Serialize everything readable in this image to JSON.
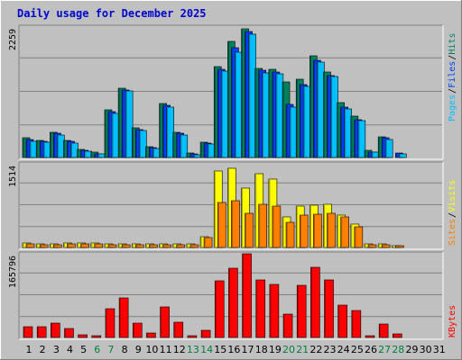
{
  "title": "Daily usage for December 2025",
  "colors": {
    "panel_bg": "#c0c0c0",
    "hits": "#00805c",
    "files": "#0040ff",
    "pages": "#00c0ff",
    "visits": "#ffff00",
    "sites": "#ff8000",
    "kbytes": "#ff0000",
    "weekend_label": "#008040",
    "weekday_label": "#000000"
  },
  "chart_data": [
    {
      "type": "bar",
      "panel": "hits-files-pages",
      "ytick_label": "2259",
      "ylim": [
        0,
        2259
      ],
      "legend": [
        {
          "text": "Pages",
          "color": "#00c0ff"
        },
        {
          "text": "/",
          "color": "#000000"
        },
        {
          "text": "Files",
          "color": "#0040ff"
        },
        {
          "text": "/",
          "color": "#000000"
        },
        {
          "text": "Hits",
          "color": "#00805c"
        }
      ],
      "categories": [
        1,
        2,
        3,
        4,
        5,
        6,
        7,
        8,
        9,
        10,
        11,
        12,
        13,
        14,
        15,
        16,
        17,
        18,
        19,
        20,
        21,
        22,
        23,
        24,
        25,
        26,
        27,
        28,
        29,
        30,
        31
      ],
      "series": [
        {
          "name": "Hits",
          "values": [
            340,
            300,
            450,
            300,
            140,
            90,
            830,
            1220,
            520,
            190,
            940,
            450,
            80,
            270,
            1600,
            2030,
            2260,
            1570,
            1550,
            1330,
            1380,
            1790,
            1500,
            960,
            720,
            120,
            370,
            0,
            0,
            0,
            0
          ]
        },
        {
          "name": "Files",
          "values": [
            310,
            280,
            420,
            280,
            120,
            70,
            800,
            1190,
            490,
            170,
            910,
            420,
            60,
            250,
            1550,
            1930,
            2210,
            1530,
            1500,
            930,
            1280,
            1710,
            1440,
            880,
            660,
            100,
            340,
            80,
            0,
            0,
            0
          ]
        },
        {
          "name": "Pages",
          "values": [
            285,
            265,
            400,
            260,
            110,
            60,
            780,
            1170,
            470,
            160,
            890,
            400,
            50,
            230,
            1510,
            1850,
            2170,
            1490,
            1470,
            880,
            1250,
            1680,
            1420,
            850,
            640,
            90,
            320,
            70,
            0,
            0,
            0
          ]
        }
      ]
    },
    {
      "type": "bar",
      "panel": "visits-sites",
      "ytick_label": "1514",
      "ylim": [
        0,
        1514
      ],
      "legend": [
        {
          "text": "Sites",
          "color": "#ff8000"
        },
        {
          "text": "/",
          "color": "#000000"
        },
        {
          "text": "Visits",
          "color": "#ffff00"
        }
      ],
      "categories": [
        1,
        2,
        3,
        4,
        5,
        6,
        7,
        8,
        9,
        10,
        11,
        12,
        13,
        14,
        15,
        16,
        17,
        18,
        19,
        20,
        21,
        22,
        23,
        24,
        25,
        26,
        27,
        28,
        29,
        30,
        31
      ],
      "series": [
        {
          "name": "Visits",
          "values": [
            80,
            70,
            65,
            75,
            90,
            85,
            65,
            60,
            60,
            65,
            60,
            60,
            60,
            200,
            1420,
            1460,
            1100,
            1360,
            1260,
            570,
            760,
            790,
            800,
            600,
            440,
            65,
            60,
            40,
            0,
            0,
            0
          ]
        },
        {
          "name": "Sites",
          "values": [
            60,
            55,
            55,
            60,
            70,
            65,
            55,
            50,
            50,
            55,
            50,
            50,
            50,
            185,
            840,
            860,
            640,
            800,
            760,
            460,
            600,
            620,
            630,
            560,
            380,
            55,
            50,
            30,
            0,
            0,
            0
          ]
        }
      ]
    },
    {
      "type": "bar",
      "panel": "kbytes",
      "ytick_label": "165796",
      "ylim": [
        0,
        165796
      ],
      "legend": [
        {
          "text": "KBytes",
          "color": "#ff0000"
        }
      ],
      "categories": [
        1,
        2,
        3,
        4,
        5,
        6,
        7,
        8,
        9,
        10,
        11,
        12,
        13,
        14,
        15,
        16,
        17,
        18,
        19,
        20,
        21,
        22,
        23,
        24,
        25,
        26,
        27,
        28,
        29,
        30,
        31
      ],
      "series": [
        {
          "name": "KBytes",
          "values": [
            22000,
            22000,
            30000,
            19000,
            6000,
            4000,
            58000,
            80000,
            29000,
            9000,
            62000,
            31000,
            3000,
            15000,
            115000,
            140000,
            170000,
            116000,
            107000,
            47000,
            106000,
            142000,
            117000,
            66000,
            54000,
            4000,
            28000,
            7000,
            0,
            0,
            0
          ]
        }
      ]
    }
  ],
  "x_axis": {
    "labels": [
      "1",
      "2",
      "3",
      "4",
      "5",
      "6",
      "7",
      "8",
      "9",
      "10",
      "11",
      "12",
      "13",
      "14",
      "15",
      "16",
      "17",
      "18",
      "19",
      "20",
      "21",
      "22",
      "23",
      "24",
      "25",
      "26",
      "27",
      "28",
      "29",
      "30",
      "31"
    ],
    "weekend_days": [
      6,
      7,
      13,
      14,
      20,
      21,
      27,
      28
    ]
  }
}
